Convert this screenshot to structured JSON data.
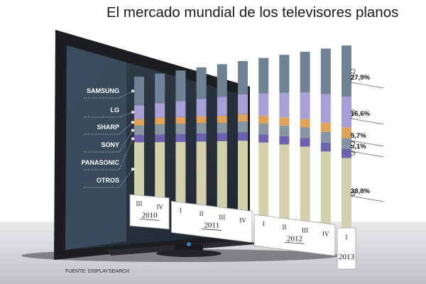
{
  "title": "El mercado mundial de los televisores planos",
  "source": "FUENTE: DISPLAYSEARCH",
  "colors": {
    "background": "#ffffff",
    "tv_frame": "#1c1d21",
    "tv_screen": "#26313f",
    "legend_panel": "#3c4f60",
    "label_box": "#ffffff"
  },
  "chart_data": {
    "type": "bar",
    "stacked": true,
    "unit": "%",
    "categories": [
      "III",
      "IV",
      "I",
      "II",
      "III",
      "IV",
      "I",
      "II",
      "III",
      "IV",
      "I"
    ],
    "years": [
      {
        "label": "2010",
        "quarters": [
          "III",
          "IV"
        ]
      },
      {
        "label": "2011",
        "quarters": [
          "I",
          "II",
          "III",
          "IV"
        ]
      },
      {
        "label": "2012",
        "quarters": [
          "I",
          "II",
          "III",
          "IV"
        ]
      },
      {
        "label": "2013",
        "quarters": [
          "I"
        ]
      }
    ],
    "series": [
      {
        "name": "OTROS",
        "color": "#d3d1ac",
        "values": [
          45.0,
          45.5,
          46.0,
          46.5,
          47.0,
          47.5,
          46.5,
          45.5,
          44.5,
          42.0,
          38.8
        ],
        "value_label": "38,8%"
      },
      {
        "name": "PANASONIC",
        "color": "#6c62b0",
        "values": [
          6.0,
          6.0,
          5.8,
          5.8,
          5.5,
          5.5,
          5.2,
          5.0,
          5.0,
          5.0,
          5.1
        ],
        "value_label": "5,1%"
      },
      {
        "name": "SONY",
        "color": "#8795a2",
        "values": [
          8.0,
          8.0,
          7.8,
          7.5,
          7.0,
          7.0,
          6.8,
          6.5,
          6.2,
          6.0,
          5.7
        ],
        "value_label": "5,7%"
      },
      {
        "name": "SHARP",
        "color": "#e0a258",
        "values": [
          5.5,
          5.5,
          5.2,
          5.0,
          5.0,
          5.0,
          5.0,
          5.0,
          5.0,
          5.3,
          5.9
        ]
      },
      {
        "name": "LG",
        "color": "#a79fd8",
        "values": [
          11.5,
          11.5,
          12.0,
          12.5,
          13.0,
          13.0,
          14.0,
          15.0,
          15.5,
          16.0,
          16.6
        ],
        "value_label": "16,6%"
      },
      {
        "name": "SAMSUNG",
        "color": "#6e8293",
        "values": [
          24.0,
          23.5,
          23.2,
          22.7,
          22.5,
          22.0,
          22.5,
          23.0,
          23.8,
          25.7,
          27.9
        ],
        "value_label": "27,9%"
      }
    ],
    "ylim": [
      0,
      100
    ],
    "legend": "left"
  }
}
